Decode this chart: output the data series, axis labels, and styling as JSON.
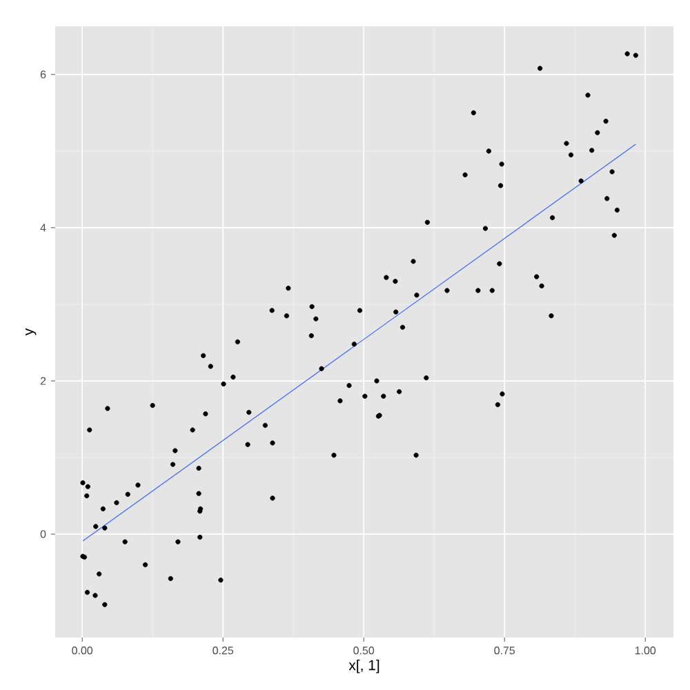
{
  "chart_data": {
    "type": "scatter",
    "xlabel": "x[, 1]",
    "ylabel": "y",
    "xlim": [
      -0.048,
      1.05
    ],
    "ylim": [
      -1.35,
      6.63
    ],
    "xticks": [
      {
        "value": 0,
        "label": "0.00"
      },
      {
        "value": 0.25,
        "label": "0.25"
      },
      {
        "value": 0.5,
        "label": "0.50"
      },
      {
        "value": 0.75,
        "label": "0.75"
      },
      {
        "value": 1,
        "label": "1.00"
      }
    ],
    "yticks": [
      0,
      2,
      4,
      6
    ],
    "grid": true,
    "series": [
      {
        "marker": "circle",
        "color": "#000000",
        "x": [
          0.366,
          0.337,
          0.363,
          0.408,
          0.415,
          0.407,
          0.493,
          0.276,
          0.215,
          0.228,
          0.483,
          0.425,
          0.268,
          0.251,
          0.474,
          0.502,
          0.458,
          0.045,
          0.125,
          0.013,
          0.219,
          0.196,
          0.296,
          0.325,
          0.294,
          0.338,
          0.447,
          0.165,
          0.161,
          0.207,
          0.001,
          0.01,
          0.008,
          0.099,
          0.081,
          0.061,
          0.037,
          0.207,
          0.21,
          0.209,
          0.338,
          0.024,
          0.04,
          0.076,
          0.17,
          0.209,
          0.001,
          0.004,
          0.112,
          0.03,
          0.157,
          0.246,
          0.009,
          0.023,
          0.04,
          0.68,
          0.743,
          0.613,
          0.716,
          0.835,
          0.886,
          0.941,
          0.932,
          0.95,
          0.945,
          0.588,
          0.54,
          0.556,
          0.741,
          0.648,
          0.703,
          0.728,
          0.594,
          0.807,
          0.816,
          0.833,
          0.557,
          0.569,
          0.523,
          0.535,
          0.563,
          0.611,
          0.526,
          0.528,
          0.738,
          0.746,
          0.593,
          0.968,
          0.983,
          0.813,
          0.898,
          0.695,
          0.93,
          0.915,
          0.86,
          0.868,
          0.905,
          0.722,
          0.745
        ],
        "values": [
          3.21,
          2.92,
          2.85,
          2.97,
          2.81,
          2.59,
          2.92,
          2.51,
          2.33,
          2.19,
          2.48,
          2.16,
          2.05,
          1.96,
          1.94,
          1.8,
          1.74,
          1.64,
          1.68,
          1.36,
          1.57,
          1.36,
          1.59,
          1.42,
          1.17,
          1.19,
          1.03,
          1.09,
          0.91,
          0.86,
          0.67,
          0.62,
          0.5,
          0.64,
          0.52,
          0.41,
          0.33,
          0.53,
          0.33,
          0.3,
          0.47,
          0.1,
          0.08,
          -0.1,
          -0.1,
          -0.04,
          -0.29,
          -0.3,
          -0.4,
          -0.52,
          -0.58,
          -0.6,
          -0.76,
          -0.8,
          -0.92,
          4.69,
          4.55,
          4.07,
          3.99,
          4.13,
          4.61,
          4.73,
          4.38,
          4.23,
          3.9,
          3.56,
          3.35,
          3.3,
          3.53,
          3.18,
          3.18,
          3.18,
          3.12,
          3.36,
          3.24,
          2.85,
          2.9,
          2.7,
          2.0,
          1.8,
          1.86,
          2.04,
          1.54,
          1.55,
          1.69,
          1.83,
          1.03,
          6.27,
          6.25,
          6.08,
          5.73,
          5.5,
          5.39,
          5.24,
          5.1,
          4.95,
          5.01,
          5.0,
          4.83
        ]
      },
      {
        "type": "line",
        "marker": "none",
        "color": "#3366ff",
        "x": [
          0.001,
          0.983
        ],
        "values": [
          -0.09,
          5.09
        ]
      }
    ]
  }
}
